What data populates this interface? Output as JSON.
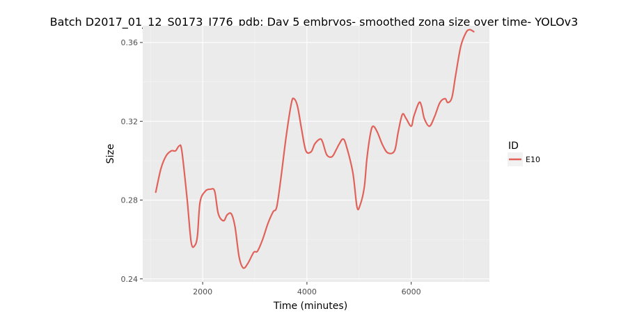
{
  "chart_data": {
    "type": "line",
    "title": "Batch D2017_01_12_S0173_I776_pdb: Day 5 embryos- smoothed zona size over time- YOLOv3",
    "xlabel": "Time (minutes)",
    "ylabel": "Size",
    "xlim": [
      850,
      7500
    ],
    "ylim": [
      0.2385,
      0.3685
    ],
    "x_ticks": [
      2000,
      4000,
      6000
    ],
    "x_tick_labels": [
      "2000",
      "4000",
      "6000"
    ],
    "y_ticks": [
      0.24,
      0.28,
      0.32,
      0.36
    ],
    "y_tick_labels": [
      "0.24",
      "0.28",
      "0.32",
      "0.36"
    ],
    "grid": true,
    "legend": {
      "title": "ID",
      "position": "right",
      "entries": [
        {
          "label": "E10",
          "color": "#e0625a"
        }
      ]
    },
    "series": [
      {
        "name": "E10",
        "color": "#e0625a",
        "points": [
          [
            1100,
            0.284
          ],
          [
            1200,
            0.296
          ],
          [
            1300,
            0.3025
          ],
          [
            1400,
            0.305
          ],
          [
            1480,
            0.305
          ],
          [
            1550,
            0.3075
          ],
          [
            1600,
            0.305
          ],
          [
            1700,
            0.281
          ],
          [
            1780,
            0.2585
          ],
          [
            1850,
            0.257
          ],
          [
            1900,
            0.262
          ],
          [
            1950,
            0.279
          ],
          [
            2050,
            0.2845
          ],
          [
            2150,
            0.2855
          ],
          [
            2230,
            0.2845
          ],
          [
            2300,
            0.273
          ],
          [
            2400,
            0.2695
          ],
          [
            2470,
            0.2725
          ],
          [
            2550,
            0.273
          ],
          [
            2620,
            0.2665
          ],
          [
            2700,
            0.251
          ],
          [
            2780,
            0.2455
          ],
          [
            2870,
            0.248
          ],
          [
            2980,
            0.2535
          ],
          [
            3050,
            0.254
          ],
          [
            3150,
            0.26
          ],
          [
            3250,
            0.268
          ],
          [
            3350,
            0.274
          ],
          [
            3420,
            0.2765
          ],
          [
            3500,
            0.291
          ],
          [
            3600,
            0.312
          ],
          [
            3700,
            0.329
          ],
          [
            3750,
            0.3315
          ],
          [
            3820,
            0.3275
          ],
          [
            3900,
            0.3155
          ],
          [
            3980,
            0.305
          ],
          [
            4080,
            0.3045
          ],
          [
            4150,
            0.3085
          ],
          [
            4250,
            0.311
          ],
          [
            4300,
            0.3095
          ],
          [
            4380,
            0.303
          ],
          [
            4480,
            0.302
          ],
          [
            4560,
            0.3055
          ],
          [
            4620,
            0.3085
          ],
          [
            4690,
            0.311
          ],
          [
            4750,
            0.308
          ],
          [
            4880,
            0.294
          ],
          [
            4960,
            0.2765
          ],
          [
            5020,
            0.2775
          ],
          [
            5100,
            0.2865
          ],
          [
            5150,
            0.301
          ],
          [
            5220,
            0.314
          ],
          [
            5270,
            0.3175
          ],
          [
            5350,
            0.3145
          ],
          [
            5450,
            0.308
          ],
          [
            5550,
            0.304
          ],
          [
            5680,
            0.305
          ],
          [
            5750,
            0.3145
          ],
          [
            5830,
            0.3235
          ],
          [
            5900,
            0.3215
          ],
          [
            6000,
            0.3175
          ],
          [
            6050,
            0.3225
          ],
          [
            6150,
            0.3295
          ],
          [
            6200,
            0.3275
          ],
          [
            6250,
            0.3215
          ],
          [
            6350,
            0.3175
          ],
          [
            6450,
            0.3225
          ],
          [
            6550,
            0.3295
          ],
          [
            6650,
            0.3315
          ],
          [
            6700,
            0.3295
          ],
          [
            6780,
            0.332
          ],
          [
            6850,
            0.343
          ],
          [
            6950,
            0.358
          ],
          [
            7050,
            0.365
          ],
          [
            7120,
            0.3665
          ],
          [
            7200,
            0.3655
          ]
        ]
      }
    ]
  }
}
